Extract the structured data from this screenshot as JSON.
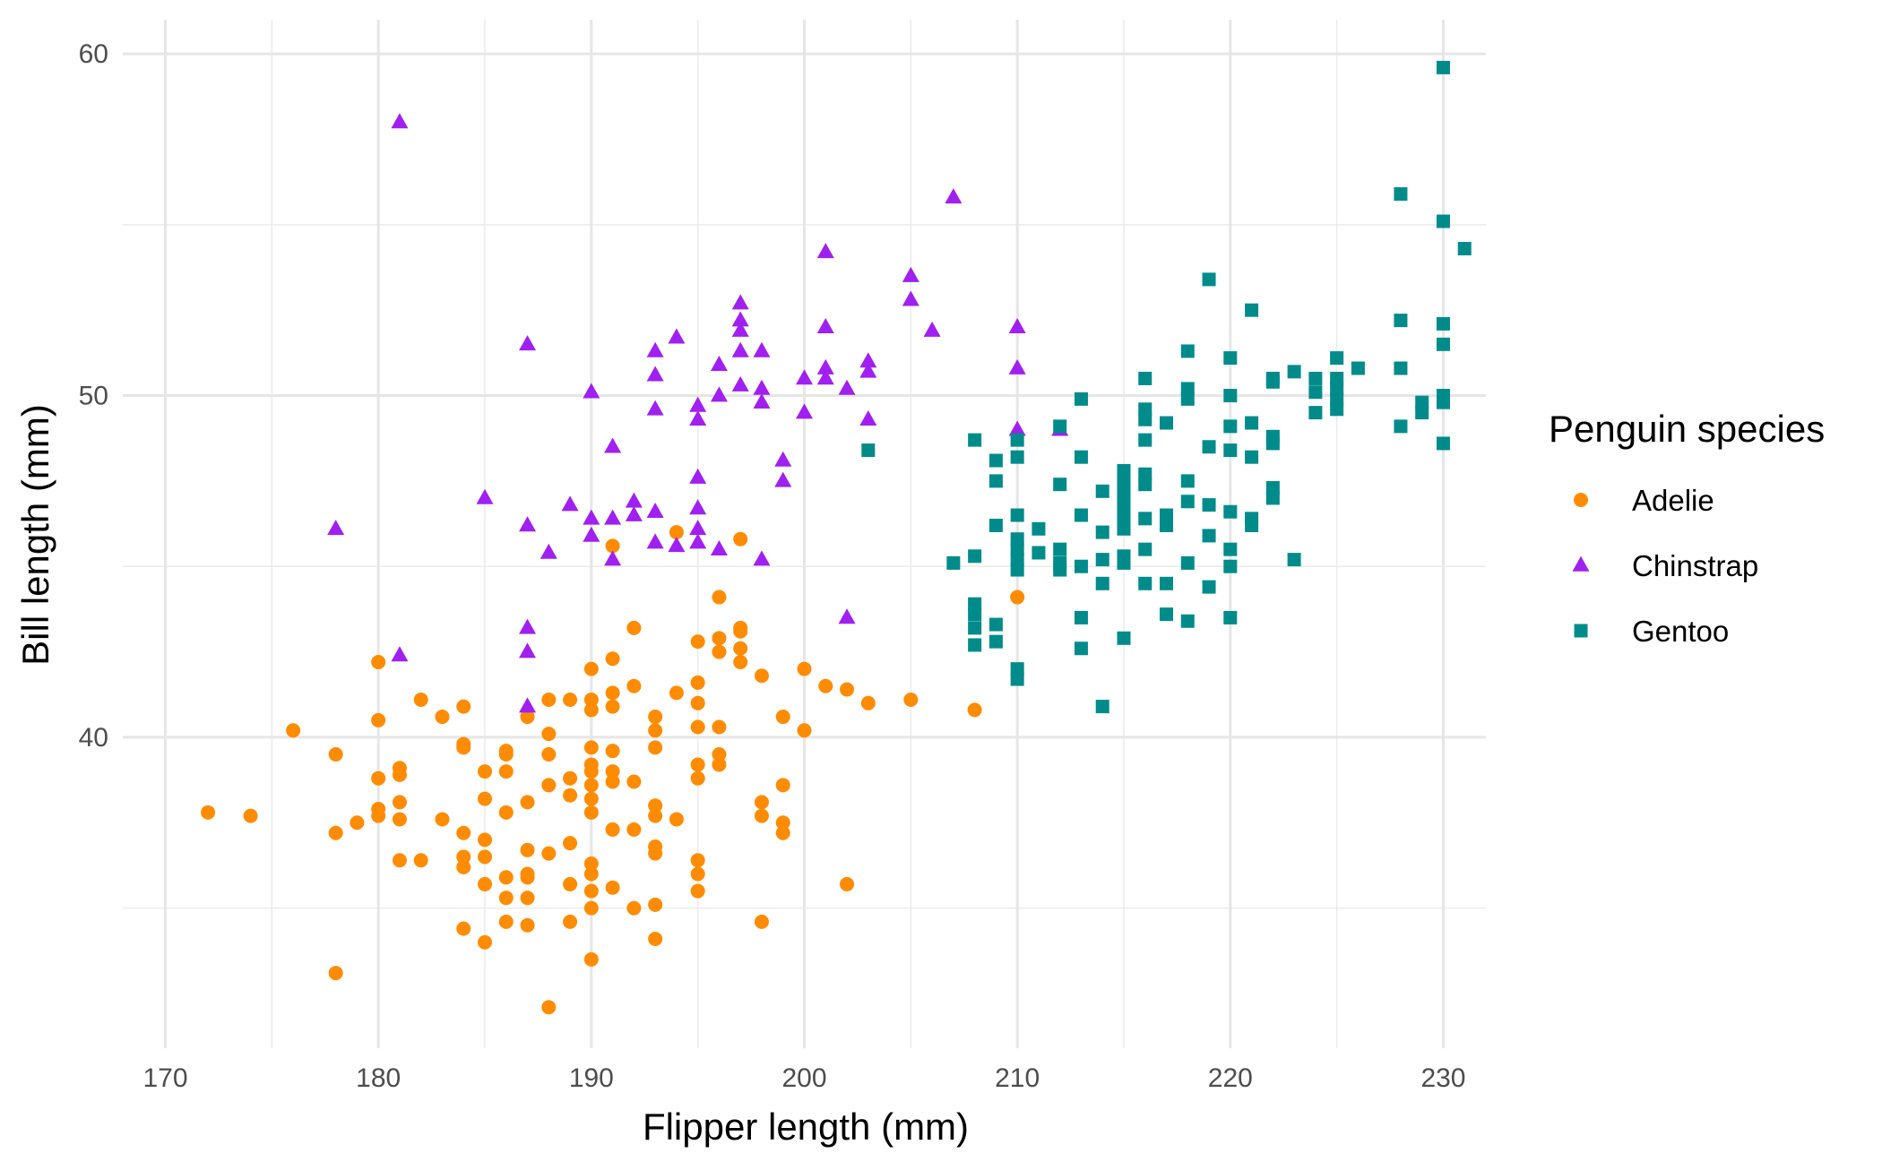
{
  "chart_data": {
    "type": "scatter",
    "xlabel": "Flipper length (mm)",
    "ylabel": "Bill length (mm)",
    "xlim": [
      168,
      232
    ],
    "ylim": [
      30.9,
      61
    ],
    "x_ticks": [
      "170",
      "180",
      "190",
      "200",
      "210",
      "220",
      "230"
    ],
    "y_ticks": [
      "40",
      "50",
      "60"
    ],
    "grid": true,
    "legend": {
      "title": "Penguin species",
      "position": "right"
    },
    "series": [
      {
        "name": "Adelie",
        "color": "#ff8c00",
        "marker": "circle",
        "points": [
          [
            172,
            37.8
          ],
          [
            174,
            37.7
          ],
          [
            176,
            40.2
          ],
          [
            178,
            39.5
          ],
          [
            178,
            37.2
          ],
          [
            178,
            33.1
          ],
          [
            179,
            37.5
          ],
          [
            180,
            42.2
          ],
          [
            180,
            40.5
          ],
          [
            180,
            38.8
          ],
          [
            180,
            37.9
          ],
          [
            180,
            37.7
          ],
          [
            181,
            39.1
          ],
          [
            181,
            38.9
          ],
          [
            181,
            38.1
          ],
          [
            181,
            37.6
          ],
          [
            181,
            36.4
          ],
          [
            182,
            41.1
          ],
          [
            182,
            36.4
          ],
          [
            183,
            40.6
          ],
          [
            183,
            37.6
          ],
          [
            184,
            40.9
          ],
          [
            184,
            39.7
          ],
          [
            184,
            39.8
          ],
          [
            184,
            37.2
          ],
          [
            184,
            36.5
          ],
          [
            184,
            36.2
          ],
          [
            184,
            34.4
          ],
          [
            185,
            39.0
          ],
          [
            185,
            38.2
          ],
          [
            185,
            37.0
          ],
          [
            185,
            36.5
          ],
          [
            185,
            35.7
          ],
          [
            185,
            34.0
          ],
          [
            186,
            39.6
          ],
          [
            186,
            39.5
          ],
          [
            186,
            39.0
          ],
          [
            186,
            37.8
          ],
          [
            186,
            35.9
          ],
          [
            186,
            35.3
          ],
          [
            186,
            34.6
          ],
          [
            187,
            40.6
          ],
          [
            187,
            38.1
          ],
          [
            187,
            36.7
          ],
          [
            187,
            36.0
          ],
          [
            187,
            35.9
          ],
          [
            187,
            35.3
          ],
          [
            187,
            34.5
          ],
          [
            188,
            41.1
          ],
          [
            188,
            40.1
          ],
          [
            188,
            39.5
          ],
          [
            188,
            38.6
          ],
          [
            188,
            36.6
          ],
          [
            188,
            32.1
          ],
          [
            189,
            41.1
          ],
          [
            189,
            38.8
          ],
          [
            189,
            38.3
          ],
          [
            189,
            36.9
          ],
          [
            189,
            35.7
          ],
          [
            189,
            34.6
          ],
          [
            190,
            42.0
          ],
          [
            190,
            41.1
          ],
          [
            190,
            40.8
          ],
          [
            190,
            39.7
          ],
          [
            190,
            39.2
          ],
          [
            190,
            39.0
          ],
          [
            190,
            38.6
          ],
          [
            190,
            38.2
          ],
          [
            190,
            37.8
          ],
          [
            190,
            36.3
          ],
          [
            190,
            36.0
          ],
          [
            190,
            35.5
          ],
          [
            190,
            35.0
          ],
          [
            190,
            33.5
          ],
          [
            191,
            45.6
          ],
          [
            191,
            42.3
          ],
          [
            191,
            41.3
          ],
          [
            191,
            40.9
          ],
          [
            191,
            39.6
          ],
          [
            191,
            39.0
          ],
          [
            191,
            38.7
          ],
          [
            191,
            37.3
          ],
          [
            191,
            35.6
          ],
          [
            192,
            43.2
          ],
          [
            192,
            41.5
          ],
          [
            192,
            38.7
          ],
          [
            192,
            37.3
          ],
          [
            192,
            35.0
          ],
          [
            193,
            40.6
          ],
          [
            193,
            40.2
          ],
          [
            193,
            39.7
          ],
          [
            193,
            38.0
          ],
          [
            193,
            37.7
          ],
          [
            193,
            36.8
          ],
          [
            193,
            36.6
          ],
          [
            193,
            35.1
          ],
          [
            193,
            34.1
          ],
          [
            194,
            46.0
          ],
          [
            194,
            41.3
          ],
          [
            194,
            37.6
          ],
          [
            195,
            42.8
          ],
          [
            195,
            41.6
          ],
          [
            195,
            41.0
          ],
          [
            195,
            40.3
          ],
          [
            195,
            39.2
          ],
          [
            195,
            38.8
          ],
          [
            195,
            36.4
          ],
          [
            195,
            36.0
          ],
          [
            195,
            35.5
          ],
          [
            196,
            44.1
          ],
          [
            196,
            42.9
          ],
          [
            196,
            42.5
          ],
          [
            196,
            40.3
          ],
          [
            196,
            39.5
          ],
          [
            196,
            39.2
          ],
          [
            197,
            45.8
          ],
          [
            197,
            43.2
          ],
          [
            197,
            43.1
          ],
          [
            197,
            42.6
          ],
          [
            197,
            42.2
          ],
          [
            198,
            41.8
          ],
          [
            198,
            38.1
          ],
          [
            198,
            37.7
          ],
          [
            198,
            34.6
          ],
          [
            199,
            40.6
          ],
          [
            199,
            38.6
          ],
          [
            199,
            37.5
          ],
          [
            199,
            37.2
          ],
          [
            200,
            42.0
          ],
          [
            200,
            40.2
          ],
          [
            201,
            41.5
          ],
          [
            202,
            41.4
          ],
          [
            202,
            35.7
          ],
          [
            203,
            41.0
          ],
          [
            205,
            41.1
          ],
          [
            208,
            40.8
          ],
          [
            210,
            44.1
          ]
        ]
      },
      {
        "name": "Chinstrap",
        "color": "#a020f0",
        "marker": "triangle",
        "points": [
          [
            178,
            46.1
          ],
          [
            181,
            58.0
          ],
          [
            181,
            42.4
          ],
          [
            185,
            47.0
          ],
          [
            187,
            51.5
          ],
          [
            187,
            46.2
          ],
          [
            187,
            43.2
          ],
          [
            187,
            42.5
          ],
          [
            187,
            40.9
          ],
          [
            188,
            45.4
          ],
          [
            189,
            46.8
          ],
          [
            190,
            50.1
          ],
          [
            190,
            46.4
          ],
          [
            190,
            45.9
          ],
          [
            191,
            48.5
          ],
          [
            191,
            46.4
          ],
          [
            191,
            45.2
          ],
          [
            192,
            46.9
          ],
          [
            192,
            46.5
          ],
          [
            193,
            51.3
          ],
          [
            193,
            50.6
          ],
          [
            193,
            49.6
          ],
          [
            193,
            46.6
          ],
          [
            193,
            45.7
          ],
          [
            194,
            51.7
          ],
          [
            194,
            45.6
          ],
          [
            195,
            49.7
          ],
          [
            195,
            49.3
          ],
          [
            195,
            47.6
          ],
          [
            195,
            46.7
          ],
          [
            195,
            46.1
          ],
          [
            195,
            45.7
          ],
          [
            196,
            50.9
          ],
          [
            196,
            50.0
          ],
          [
            196,
            45.5
          ],
          [
            197,
            52.7
          ],
          [
            197,
            52.2
          ],
          [
            197,
            51.9
          ],
          [
            197,
            51.3
          ],
          [
            197,
            50.3
          ],
          [
            198,
            51.3
          ],
          [
            198,
            50.2
          ],
          [
            198,
            49.8
          ],
          [
            198,
            45.2
          ],
          [
            199,
            48.1
          ],
          [
            199,
            47.5
          ],
          [
            200,
            50.5
          ],
          [
            200,
            49.5
          ],
          [
            201,
            54.2
          ],
          [
            201,
            52.0
          ],
          [
            201,
            50.8
          ],
          [
            201,
            50.5
          ],
          [
            202,
            50.2
          ],
          [
            202,
            43.5
          ],
          [
            203,
            51.0
          ],
          [
            203,
            50.7
          ],
          [
            203,
            49.3
          ],
          [
            205,
            53.5
          ],
          [
            205,
            52.8
          ],
          [
            206,
            51.9
          ],
          [
            207,
            55.8
          ],
          [
            210,
            52.0
          ],
          [
            210,
            50.8
          ],
          [
            210,
            49.0
          ],
          [
            212,
            49.0
          ]
        ]
      },
      {
        "name": "Gentoo",
        "color": "#008b8b",
        "marker": "square",
        "points": [
          [
            203,
            48.4
          ],
          [
            207,
            45.1
          ],
          [
            208,
            48.7
          ],
          [
            208,
            45.3
          ],
          [
            208,
            43.9
          ],
          [
            208,
            43.6
          ],
          [
            208,
            43.2
          ],
          [
            208,
            42.7
          ],
          [
            209,
            48.1
          ],
          [
            209,
            47.5
          ],
          [
            209,
            46.2
          ],
          [
            209,
            43.3
          ],
          [
            209,
            42.8
          ],
          [
            210,
            48.7
          ],
          [
            210,
            48.2
          ],
          [
            210,
            46.5
          ],
          [
            210,
            45.8
          ],
          [
            210,
            45.5
          ],
          [
            210,
            45.2
          ],
          [
            210,
            44.9
          ],
          [
            210,
            42.0
          ],
          [
            210,
            41.7
          ],
          [
            211,
            46.1
          ],
          [
            211,
            45.4
          ],
          [
            212,
            49.1
          ],
          [
            212,
            47.4
          ],
          [
            212,
            45.5
          ],
          [
            212,
            45.1
          ],
          [
            212,
            44.9
          ],
          [
            213,
            49.9
          ],
          [
            213,
            48.2
          ],
          [
            213,
            46.5
          ],
          [
            213,
            45.0
          ],
          [
            213,
            43.5
          ],
          [
            213,
            42.6
          ],
          [
            214,
            47.2
          ],
          [
            214,
            46.0
          ],
          [
            214,
            45.2
          ],
          [
            214,
            44.5
          ],
          [
            214,
            40.9
          ],
          [
            215,
            47.8
          ],
          [
            215,
            47.5
          ],
          [
            215,
            47.3
          ],
          [
            215,
            47.0
          ],
          [
            215,
            46.7
          ],
          [
            215,
            46.4
          ],
          [
            215,
            46.1
          ],
          [
            215,
            45.3
          ],
          [
            215,
            45.1
          ],
          [
            215,
            42.9
          ],
          [
            216,
            50.5
          ],
          [
            216,
            49.6
          ],
          [
            216,
            49.3
          ],
          [
            216,
            48.7
          ],
          [
            216,
            47.7
          ],
          [
            216,
            47.4
          ],
          [
            216,
            46.4
          ],
          [
            216,
            45.5
          ],
          [
            216,
            44.5
          ],
          [
            217,
            49.2
          ],
          [
            217,
            46.5
          ],
          [
            217,
            46.2
          ],
          [
            217,
            44.5
          ],
          [
            217,
            43.6
          ],
          [
            218,
            51.3
          ],
          [
            218,
            50.2
          ],
          [
            218,
            49.9
          ],
          [
            218,
            47.5
          ],
          [
            218,
            46.9
          ],
          [
            218,
            45.1
          ],
          [
            218,
            43.4
          ],
          [
            219,
            53.4
          ],
          [
            219,
            48.5
          ],
          [
            219,
            46.8
          ],
          [
            219,
            45.9
          ],
          [
            219,
            44.4
          ],
          [
            220,
            51.1
          ],
          [
            220,
            50.0
          ],
          [
            220,
            49.1
          ],
          [
            220,
            48.4
          ],
          [
            220,
            46.6
          ],
          [
            220,
            45.5
          ],
          [
            220,
            45.0
          ],
          [
            220,
            43.5
          ],
          [
            221,
            52.5
          ],
          [
            221,
            49.2
          ],
          [
            221,
            48.2
          ],
          [
            221,
            46.4
          ],
          [
            221,
            46.2
          ],
          [
            222,
            50.5
          ],
          [
            222,
            50.4
          ],
          [
            222,
            48.8
          ],
          [
            222,
            48.6
          ],
          [
            222,
            47.3
          ],
          [
            222,
            47.0
          ],
          [
            223,
            50.7
          ],
          [
            223,
            45.2
          ],
          [
            224,
            50.5
          ],
          [
            224,
            50.1
          ],
          [
            224,
            49.5
          ],
          [
            225,
            51.1
          ],
          [
            225,
            50.5
          ],
          [
            225,
            50.2
          ],
          [
            225,
            49.9
          ],
          [
            225,
            49.6
          ],
          [
            226,
            50.8
          ],
          [
            228,
            55.9
          ],
          [
            228,
            52.2
          ],
          [
            228,
            50.8
          ],
          [
            228,
            49.1
          ],
          [
            229,
            49.8
          ],
          [
            229,
            49.5
          ],
          [
            230,
            59.6
          ],
          [
            230,
            55.1
          ],
          [
            230,
            52.1
          ],
          [
            230,
            51.5
          ],
          [
            230,
            50.0
          ],
          [
            230,
            49.8
          ],
          [
            230,
            48.6
          ],
          [
            231,
            54.3
          ]
        ]
      }
    ]
  }
}
